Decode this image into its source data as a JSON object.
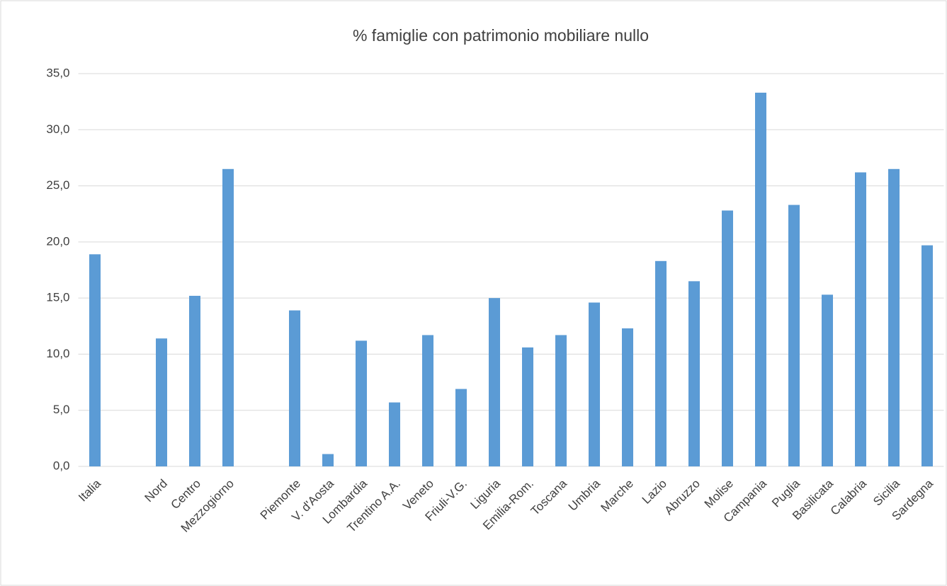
{
  "chart_data": {
    "type": "bar",
    "title": "% famiglie con patrimonio mobiliare nullo",
    "categories": [
      "Italia",
      null,
      "Nord",
      "Centro",
      "Mezzogiorno",
      null,
      "Piemonte",
      "V. d'Aosta",
      "Lombardia",
      "Trentino A.A.",
      "Veneto",
      "Friuli-V.G.",
      "Liguria",
      "Emilia-Rom.",
      "Toscana",
      "Umbria",
      "Marche",
      "Lazio",
      "Abruzzo",
      "Molise",
      "Campania",
      "Puglia",
      "Basilicata",
      "Calabria",
      "Sicilia",
      "Sardegna"
    ],
    "values": [
      18.9,
      null,
      11.4,
      15.2,
      26.5,
      null,
      13.9,
      1.1,
      11.2,
      5.7,
      11.7,
      6.9,
      15.0,
      10.6,
      11.7,
      14.6,
      12.3,
      18.3,
      16.5,
      22.8,
      33.3,
      23.3,
      15.3,
      26.2,
      26.5,
      19.7
    ],
    "color": "#5b9bd5",
    "ylim": [
      0,
      35
    ],
    "yticks": [
      {
        "value": 0,
        "label": "0,0"
      },
      {
        "value": 5,
        "label": "5,0"
      },
      {
        "value": 10,
        "label": "10,0"
      },
      {
        "value": 15,
        "label": "15,0"
      },
      {
        "value": 20,
        "label": "20,0"
      },
      {
        "value": 25,
        "label": "25,0"
      },
      {
        "value": 30,
        "label": "30,0"
      },
      {
        "value": 35,
        "label": "35,0"
      }
    ],
    "grid": true
  }
}
